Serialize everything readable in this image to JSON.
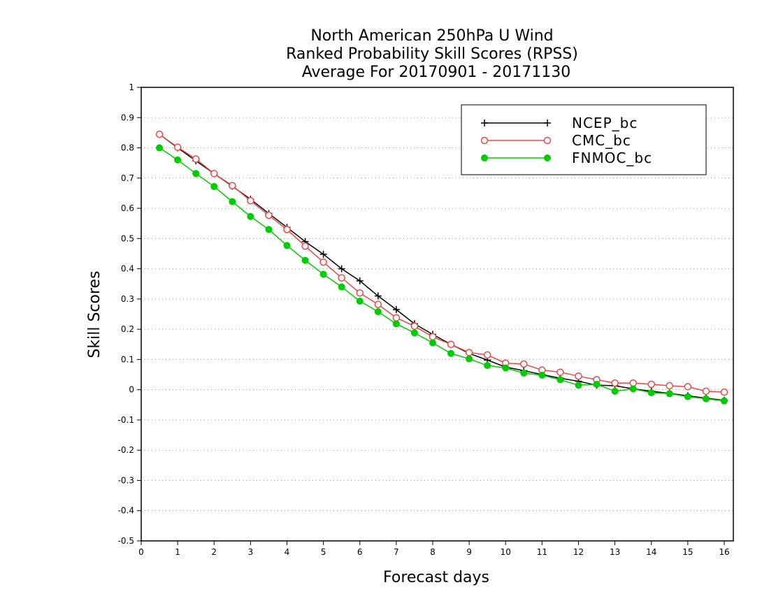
{
  "chart_data": {
    "type": "line",
    "title": [
      "North American 250hPa U Wind",
      "Ranked Probability Skill Scores (RPSS)",
      "Average For 20170901 - 20171130"
    ],
    "xlabel": "Forecast days",
    "ylabel": "Skill Scores",
    "xlim": [
      0,
      16.25
    ],
    "ylim": [
      -0.5,
      1
    ],
    "xticks": [
      "0",
      "1",
      "2",
      "3",
      "4",
      "5",
      "6",
      "7",
      "8",
      "9",
      "10",
      "11",
      "12",
      "13",
      "14",
      "15",
      "16"
    ],
    "yticks": [
      "1",
      "0.9",
      "0.8",
      "0.7",
      "0.6",
      "0.5",
      "0.4",
      "0.3",
      "0.2",
      "0.1",
      "0",
      "-0.1",
      "-0.2",
      "-0.3",
      "-0.4",
      "-0.5"
    ],
    "grid": true,
    "legend_position": "top-right",
    "x": [
      0.5,
      1,
      1.5,
      2,
      2.5,
      3,
      3.5,
      4,
      4.5,
      5,
      5.5,
      6,
      6.5,
      7,
      7.5,
      8,
      8.5,
      9,
      9.5,
      10,
      10.5,
      11,
      11.5,
      12,
      12.5,
      13,
      13.5,
      14,
      14.5,
      15,
      15.5,
      16
    ],
    "series": [
      {
        "name": "NCEP_bc",
        "color": "#000000",
        "marker": "plus",
        "values": [
          0.845,
          0.8,
          0.757,
          0.715,
          0.673,
          0.63,
          0.583,
          0.537,
          0.49,
          0.448,
          0.4,
          0.36,
          0.31,
          0.265,
          0.218,
          0.183,
          0.15,
          0.12,
          0.098,
          0.075,
          0.063,
          0.05,
          0.038,
          0.028,
          0.015,
          0.013,
          0.003,
          -0.005,
          -0.012,
          -0.02,
          -0.028,
          -0.035
        ]
      },
      {
        "name": "CMC_bc",
        "color": "#e84848",
        "marker": "open-circle",
        "values": [
          0.845,
          0.802,
          0.763,
          0.715,
          0.675,
          0.625,
          0.577,
          0.53,
          0.475,
          0.422,
          0.37,
          0.32,
          0.282,
          0.238,
          0.21,
          0.175,
          0.15,
          0.123,
          0.115,
          0.088,
          0.085,
          0.065,
          0.058,
          0.045,
          0.033,
          0.022,
          0.022,
          0.018,
          0.013,
          0.01,
          -0.005,
          -0.008
        ]
      },
      {
        "name": "FNMOC_bc",
        "color": "#00cc00",
        "marker": "filled-circle",
        "values": [
          0.8,
          0.76,
          0.715,
          0.672,
          0.622,
          0.573,
          0.53,
          0.477,
          0.428,
          0.382,
          0.34,
          0.293,
          0.258,
          0.218,
          0.188,
          0.155,
          0.12,
          0.102,
          0.08,
          0.072,
          0.055,
          0.048,
          0.033,
          0.015,
          0.018,
          -0.005,
          0.003,
          -0.01,
          -0.013,
          -0.023,
          -0.03,
          -0.037
        ]
      }
    ]
  }
}
